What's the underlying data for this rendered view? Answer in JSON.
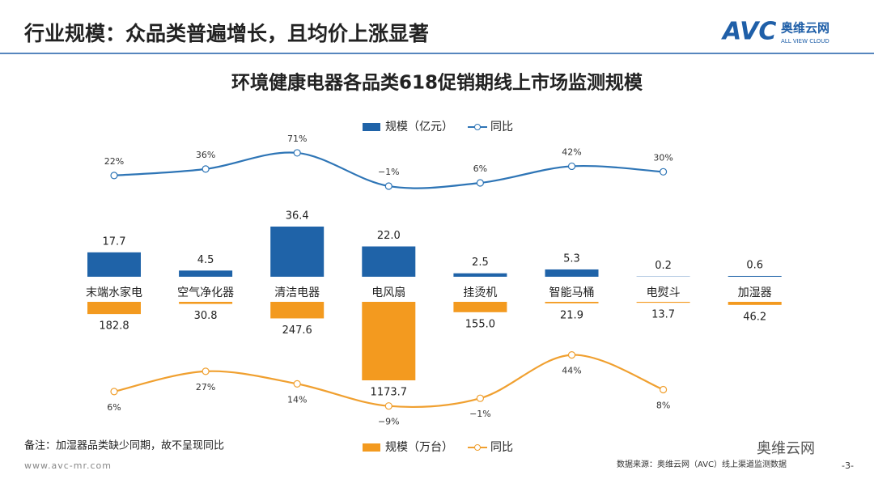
{
  "header": {
    "title": "行业规模：众品类普遍增长，且均价上涨显著",
    "logo": "AVC",
    "logo_cn": "奥维云网",
    "logo_en": "ALL VIEW CLOUD"
  },
  "chart_data": [
    {
      "type": "bar",
      "title": "环境健康电器各品类618促销期线上市场监测规模",
      "categories": [
        "末端水家电",
        "空气净化器",
        "清洁电器",
        "电风扇",
        "挂烫机",
        "智能马桶",
        "电熨斗",
        "加湿器"
      ],
      "series": [
        {
          "name": "规模（亿元）",
          "color": "#1f63a8",
          "values": [
            17.7,
            4.5,
            36.4,
            22.0,
            2.5,
            5.3,
            0.2,
            0.6
          ],
          "value_labels": [
            "17.7",
            "4.5",
            "36.4",
            "22.0",
            "2.5",
            "5.3",
            "0.2",
            "0.6"
          ]
        },
        {
          "name": "同比",
          "type": "line",
          "color": "#2e75b6",
          "values": [
            22,
            36,
            71,
            -1,
            6,
            42,
            30,
            null
          ],
          "value_labels": [
            "22%",
            "36%",
            "71%",
            "−1%",
            "6%",
            "42%",
            "30%",
            null
          ]
        }
      ]
    },
    {
      "type": "bar",
      "series": [
        {
          "name": "规模（万台）",
          "color": "#f39a1f",
          "values": [
            182.8,
            30.8,
            247.6,
            1173.7,
            155.0,
            21.9,
            13.7,
            46.2
          ],
          "value_labels": [
            "182.8",
            "30.8",
            "247.6",
            "1173.7",
            "155.0",
            "21.9",
            "13.7",
            "46.2"
          ]
        },
        {
          "name": "同比",
          "type": "line",
          "color": "#f0a030",
          "values": [
            6,
            27,
            14,
            -9,
            -1,
            44,
            8,
            null
          ],
          "value_labels": [
            "6%",
            "27%",
            "14%",
            "−9%",
            "−1%",
            "44%",
            "8%",
            null
          ]
        }
      ]
    }
  ],
  "notes": "备注：加湿器品类缺少同期，故不呈现同比",
  "website": "www.avc-mr.com",
  "source": "数据来源：奥维云网（AVC）线上渠道监测数据",
  "page": "-3-",
  "wechat": "奥维云网"
}
